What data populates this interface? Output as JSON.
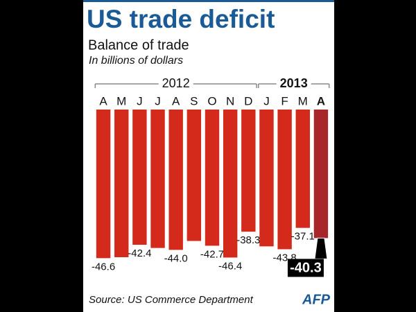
{
  "chart_data": {
    "type": "bar",
    "title": "US trade deficit",
    "subtitle": "Balance of trade",
    "unit_note": "In billions of dollars",
    "year_labels": [
      "2012",
      "2013"
    ],
    "categories": [
      "A",
      "M",
      "J",
      "J",
      "A",
      "S",
      "O",
      "N",
      "D",
      "J",
      "F",
      "M",
      "A"
    ],
    "values": [
      -46.6,
      -46.3,
      -42.4,
      -43.4,
      -44.0,
      -41.2,
      -42.7,
      -46.4,
      -38.3,
      -42.9,
      -43.8,
      -37.1,
      -40.3
    ],
    "value_labels": [
      "-46.6",
      null,
      "-42.4",
      null,
      "-44.0",
      null,
      "-42.7",
      "-46.4",
      "-38.3",
      null,
      "-43.8",
      "-37.1",
      "-40.3"
    ],
    "color": "#d32a1c",
    "highlight_color": "#a8262a",
    "ylim": [
      -50,
      0
    ],
    "source": "Source: US Commerce Department",
    "logo": "AFP"
  }
}
